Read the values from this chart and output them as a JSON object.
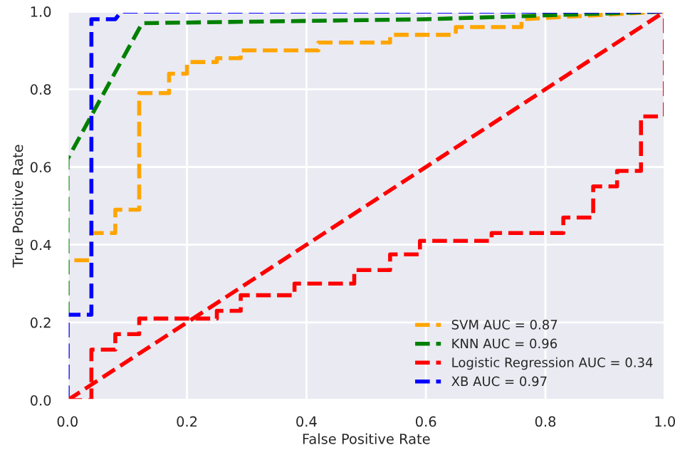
{
  "chart_data": {
    "type": "line",
    "xlabel": "False Positive Rate",
    "ylabel": "True Positive Rate",
    "xlim": [
      0,
      1
    ],
    "ylim": [
      0,
      1
    ],
    "xticks": [
      {
        "value": 0,
        "label": "0.0"
      },
      0.2,
      0.4,
      0.6,
      0.8,
      {
        "value": 1,
        "label": "1.0"
      }
    ],
    "yticks": [
      {
        "value": 0,
        "label": "0.0"
      },
      0.2,
      0.4,
      0.6,
      0.8,
      {
        "value": 1,
        "label": "1.0"
      }
    ],
    "grid": true,
    "legend": "bottom right",
    "line_style": "dashed",
    "marker": "none",
    "series": [
      {
        "name": "SVM AUC = 0.87",
        "color": "#ffa500",
        "x": [
          0,
          0,
          0.04,
          0.04,
          0.08,
          0.08,
          0.12,
          0.12,
          0.17,
          0.17,
          0.2,
          0.2,
          0.25,
          0.25,
          0.29,
          0.29,
          0.42,
          0.42,
          0.54,
          0.54,
          0.65,
          0.65,
          0.76,
          0.76,
          1
        ],
        "values": [
          0,
          0.36,
          0.36,
          0.43,
          0.43,
          0.49,
          0.49,
          0.79,
          0.79,
          0.84,
          0.84,
          0.87,
          0.87,
          0.88,
          0.88,
          0.9,
          0.9,
          0.92,
          0.92,
          0.94,
          0.94,
          0.96,
          0.96,
          0.98,
          1
        ]
      },
      {
        "name": "KNN AUC = 0.96",
        "color": "#008000",
        "x": [
          0,
          0,
          0.125,
          0.6,
          1
        ],
        "values": [
          0,
          0.62,
          0.97,
          0.98,
          1
        ]
      },
      {
        "name": "Logistic Regression AUC = 0.34",
        "color": "#ff0000",
        "x": [
          0,
          0.04,
          0.04,
          0.08,
          0.08,
          0.12,
          0.12,
          0.25,
          0.25,
          0.29,
          0.29,
          0.38,
          0.38,
          0.46,
          0.46,
          0.48,
          0.48,
          0.54,
          0.54,
          0.59,
          0.59,
          0.71,
          0.71,
          0.83,
          0.83,
          0.88,
          0.88,
          0.92,
          0.92,
          0.96,
          0.96,
          1,
          1
        ],
        "values": [
          0,
          0,
          0.13,
          0.13,
          0.17,
          0.17,
          0.21,
          0.21,
          0.23,
          0.23,
          0.27,
          0.27,
          0.3,
          0.3,
          0.3,
          0.3,
          0.335,
          0.335,
          0.375,
          0.375,
          0.41,
          0.41,
          0.43,
          0.43,
          0.47,
          0.47,
          0.55,
          0.55,
          0.59,
          0.59,
          0.73,
          0.73,
          1
        ]
      },
      {
        "name": "XB AUC = 0.97",
        "color": "#0000ff",
        "x": [
          0,
          0,
          0.04,
          0.04,
          0.08,
          0.09,
          1
        ],
        "values": [
          0,
          0.22,
          0.22,
          0.98,
          0.98,
          1,
          1
        ]
      },
      {
        "color": "#ff0000",
        "x": [
          0,
          1
        ],
        "values": [
          0,
          1
        ]
      }
    ]
  }
}
